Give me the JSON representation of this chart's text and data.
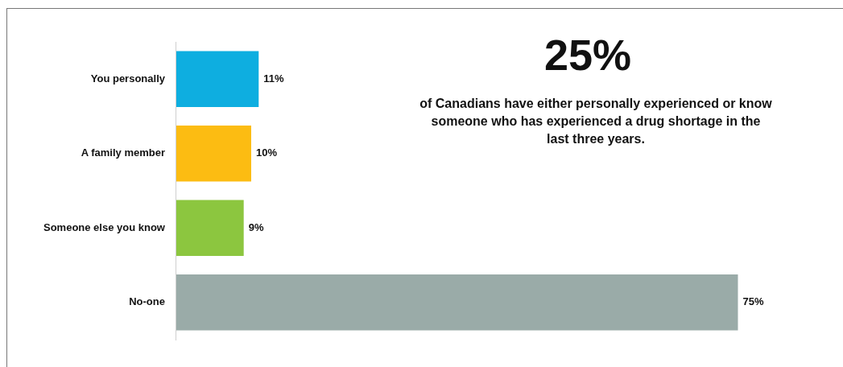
{
  "chart_data": {
    "type": "bar",
    "orientation": "horizontal",
    "categories": [
      "You personally",
      "A family member",
      "Someone else you know",
      "No-one"
    ],
    "values": [
      11,
      10,
      9,
      75
    ],
    "colors": [
      "#0eaee0",
      "#fcbc12",
      "#8cc63f",
      "#9aaba8"
    ],
    "value_labels": [
      "11%",
      "10%",
      "9%",
      "75%"
    ],
    "tick_labels": "y",
    "annotations": [
      "25%",
      "of Canadians have either personally experienced or know someone who has experienced a drug shortage in the last three years."
    ]
  }
}
